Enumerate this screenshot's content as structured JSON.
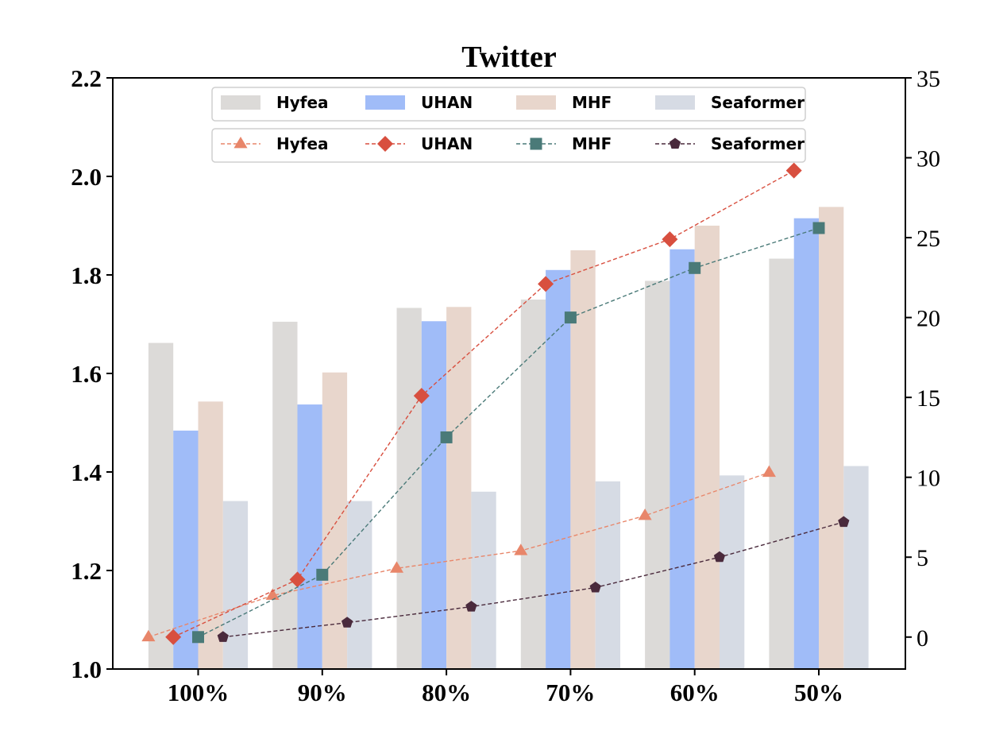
{
  "chart_data": {
    "type": "bar",
    "title": "Twitter",
    "categories": [
      "100%",
      "90%",
      "80%",
      "70%",
      "60%",
      "50%"
    ],
    "ylim": [
      1.0,
      2.2
    ],
    "yticks": [
      1.0,
      1.2,
      1.4,
      1.6,
      1.8,
      2.0,
      2.2
    ],
    "ytick_labels": [
      "1.0",
      "1.2",
      "1.4",
      "1.6",
      "1.8",
      "2.0",
      "2.2"
    ],
    "y2lim": [
      -2,
      35
    ],
    "y2ticks": [
      0,
      5,
      10,
      15,
      20,
      25,
      30,
      35
    ],
    "y2tick_labels": [
      "0",
      "5",
      "10",
      "15",
      "20",
      "25",
      "30",
      "35"
    ],
    "grid": false,
    "legend_placement": "top-center",
    "bar_series": [
      {
        "name": "Hyfea",
        "color": "#dcdad8",
        "values": [
          1.662,
          1.705,
          1.733,
          1.75,
          1.788,
          1.833
        ]
      },
      {
        "name": "UHAN",
        "color": "#a0bcf8",
        "values": [
          1.484,
          1.537,
          1.706,
          1.81,
          1.852,
          1.915
        ]
      },
      {
        "name": "MHF",
        "color": "#e8d6cc",
        "values": [
          1.543,
          1.602,
          1.735,
          1.85,
          1.9,
          1.938
        ]
      },
      {
        "name": "Seaformer",
        "color": "#d6dbe4",
        "values": [
          1.341,
          1.341,
          1.36,
          1.381,
          1.393,
          1.412
        ]
      }
    ],
    "line_series": [
      {
        "name": "Hyfea",
        "color": "#e8866a",
        "marker": "triangle",
        "values": [
          0.0,
          2.6,
          4.3,
          5.4,
          7.6,
          10.3
        ]
      },
      {
        "name": "UHAN",
        "color": "#d84f3f",
        "marker": "diamond",
        "values": [
          0.0,
          3.6,
          15.1,
          22.1,
          24.9,
          29.2
        ]
      },
      {
        "name": "MHF",
        "color": "#4a7a78",
        "marker": "square",
        "values": [
          0.0,
          3.9,
          12.5,
          20.0,
          23.1,
          25.6
        ]
      },
      {
        "name": "Seaformer",
        "color": "#4a2a3c",
        "marker": "pentagon",
        "values": [
          0.0,
          0.9,
          1.9,
          3.1,
          5.0,
          7.2
        ]
      }
    ]
  }
}
